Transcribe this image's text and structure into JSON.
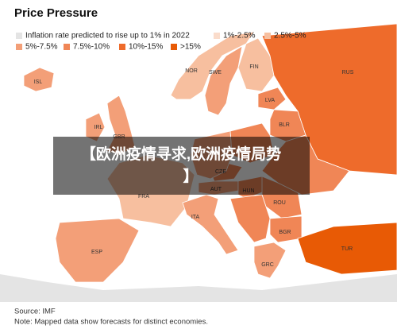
{
  "header": {
    "title": "Price Pressure"
  },
  "legend": [
    {
      "label": "Inflation rate predicted to rise up to 1% in 2022",
      "color": "#e4e4e4"
    },
    {
      "label": "1%-2.5%",
      "color": "#fadccb"
    },
    {
      "label": "2.5%-5%",
      "color": "#f7bf9f"
    },
    {
      "label": "5%-7.5%",
      "color": "#f39f78"
    },
    {
      "label": "7.5%-10%",
      "color": "#f08656"
    },
    {
      "label": "10%-15%",
      "color": "#ee6b2b"
    },
    {
      "label": ">15%",
      "color": "#e85a05"
    }
  ],
  "countries": [
    {
      "label": "ISL",
      "category": 3
    },
    {
      "label": "NOR",
      "category": 2
    },
    {
      "label": "SWE",
      "category": 3
    },
    {
      "label": "FIN",
      "category": 2
    },
    {
      "label": "RUS",
      "category": 5
    },
    {
      "label": "IRL",
      "category": 3
    },
    {
      "label": "GBR",
      "category": 3
    },
    {
      "label": "LVA",
      "category": 4
    },
    {
      "label": "BLR",
      "category": 4
    },
    {
      "label": "CZE",
      "category": 4
    },
    {
      "label": "FRA",
      "category": 2
    },
    {
      "label": "AUT",
      "category": 3
    },
    {
      "label": "HUN",
      "category": 4
    },
    {
      "label": "ROU",
      "category": 4
    },
    {
      "label": "ITA",
      "category": 3
    },
    {
      "label": "ESP",
      "category": 3
    },
    {
      "label": "BGR",
      "category": 4
    },
    {
      "label": "GRC",
      "category": 3
    },
    {
      "label": "TUR",
      "category": 6
    },
    {
      "category": 4
    },
    {
      "category": 3
    },
    {
      "category": 4
    },
    {
      "category": 4
    }
  ],
  "overlay": {
    "lines": [
      "【欧洲疫情寻求,欧洲疫情局势",
      "】"
    ]
  },
  "footer": {
    "source": "Source: IMF",
    "note": "Note: Mapped data show forecasts for distinct economies."
  }
}
